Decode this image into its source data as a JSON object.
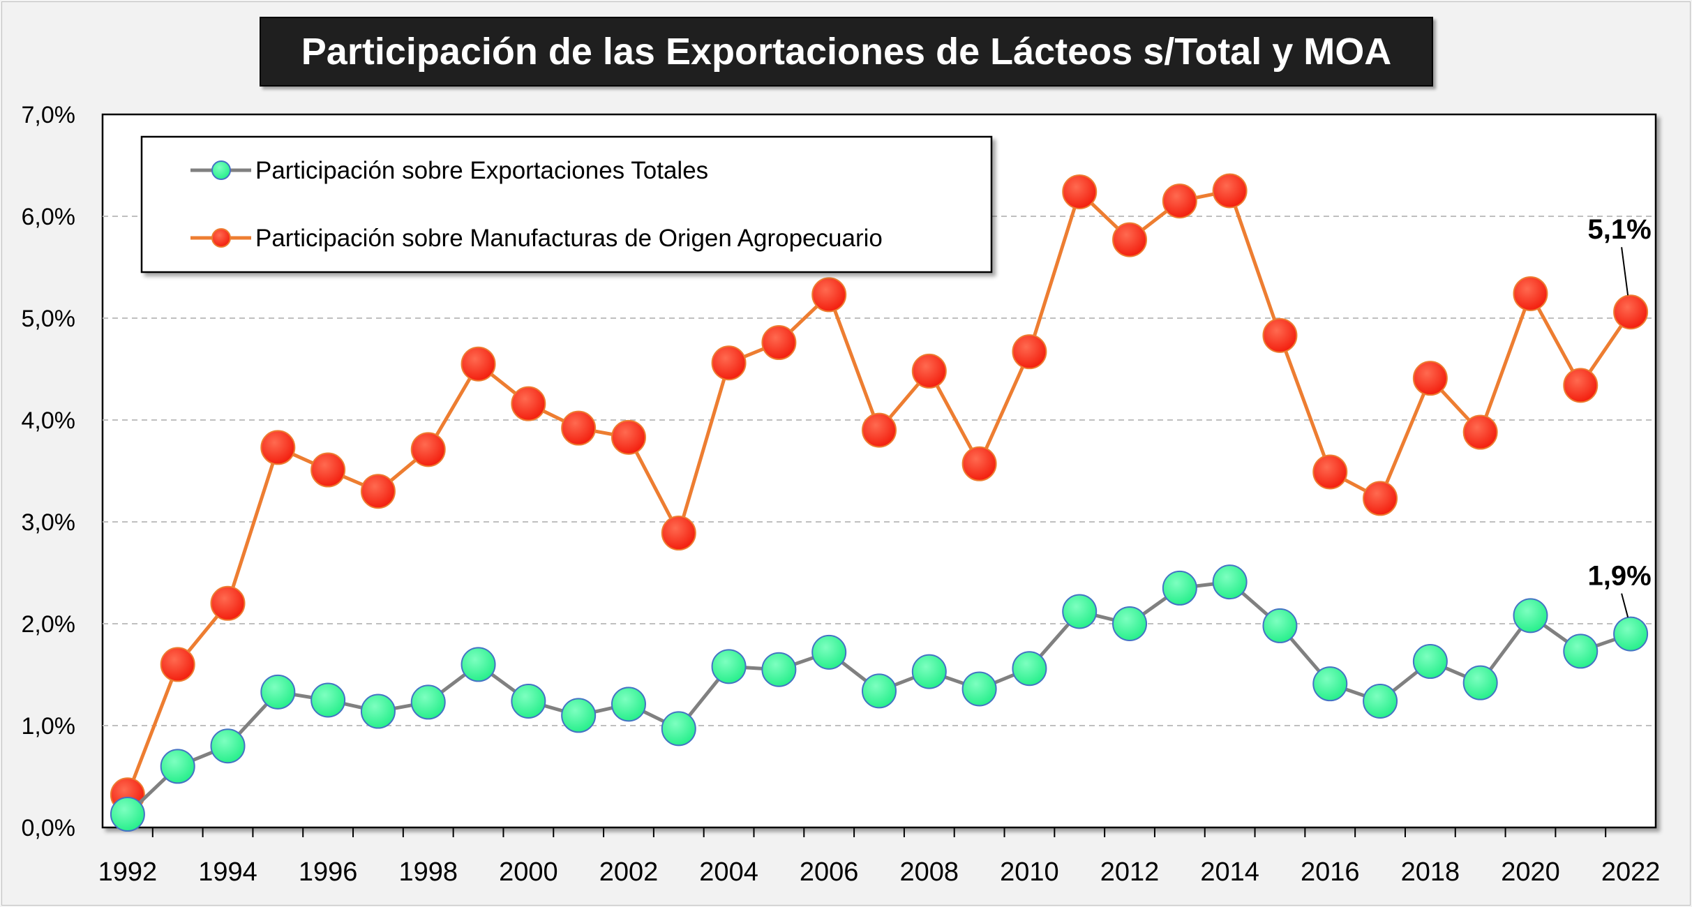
{
  "chart_data": {
    "type": "line",
    "title": "Participación de las Exportaciones de Lácteos s/Total y MOA",
    "xlabel": "",
    "ylabel": "",
    "ylim": [
      0,
      7
    ],
    "y_ticks": [
      "0,0%",
      "1,0%",
      "2,0%",
      "3,0%",
      "4,0%",
      "5,0%",
      "6,0%",
      "7,0%"
    ],
    "x_ticks": [
      "1992",
      "1994",
      "1996",
      "1998",
      "2000",
      "2002",
      "2004",
      "2006",
      "2008",
      "2010",
      "2012",
      "2014",
      "2016",
      "2018",
      "2020",
      "2022"
    ],
    "grid": "horizontal dashed",
    "legend_position": "top-left",
    "x": [
      1992,
      1993,
      1994,
      1995,
      1996,
      1997,
      1998,
      1999,
      2000,
      2001,
      2002,
      2003,
      2004,
      2005,
      2006,
      2007,
      2008,
      2009,
      2010,
      2011,
      2012,
      2013,
      2014,
      2015,
      2016,
      2017,
      2018,
      2019,
      2020,
      2021,
      2022
    ],
    "series": [
      {
        "name": "Participación sobre Exportaciones Totales",
        "line_color": "#808080",
        "marker_color": "#33ff99",
        "values": [
          0.13,
          0.6,
          0.8,
          1.33,
          1.25,
          1.14,
          1.23,
          1.6,
          1.24,
          1.1,
          1.21,
          0.97,
          1.58,
          1.55,
          1.72,
          1.34,
          1.53,
          1.36,
          1.56,
          2.12,
          2.0,
          2.35,
          2.41,
          1.98,
          1.41,
          1.24,
          1.63,
          1.42,
          2.08,
          1.73,
          1.9
        ]
      },
      {
        "name": "Participación sobre Manufacturas de Origen Agropecuario",
        "line_color": "#ed7d31",
        "marker_color": "#ff2a1a",
        "values": [
          0.32,
          1.6,
          2.2,
          3.73,
          3.51,
          3.3,
          3.71,
          4.55,
          4.16,
          3.92,
          3.83,
          2.89,
          4.56,
          4.76,
          5.23,
          3.9,
          4.48,
          3.57,
          4.67,
          6.24,
          5.77,
          6.15,
          6.25,
          4.83,
          3.49,
          3.23,
          4.41,
          3.88,
          5.24,
          4.34,
          5.06
        ]
      }
    ],
    "annotations": [
      {
        "text": "5,1%",
        "series": 1,
        "x": 2022
      },
      {
        "text": "1,9%",
        "series": 0,
        "x": 2022
      }
    ]
  }
}
